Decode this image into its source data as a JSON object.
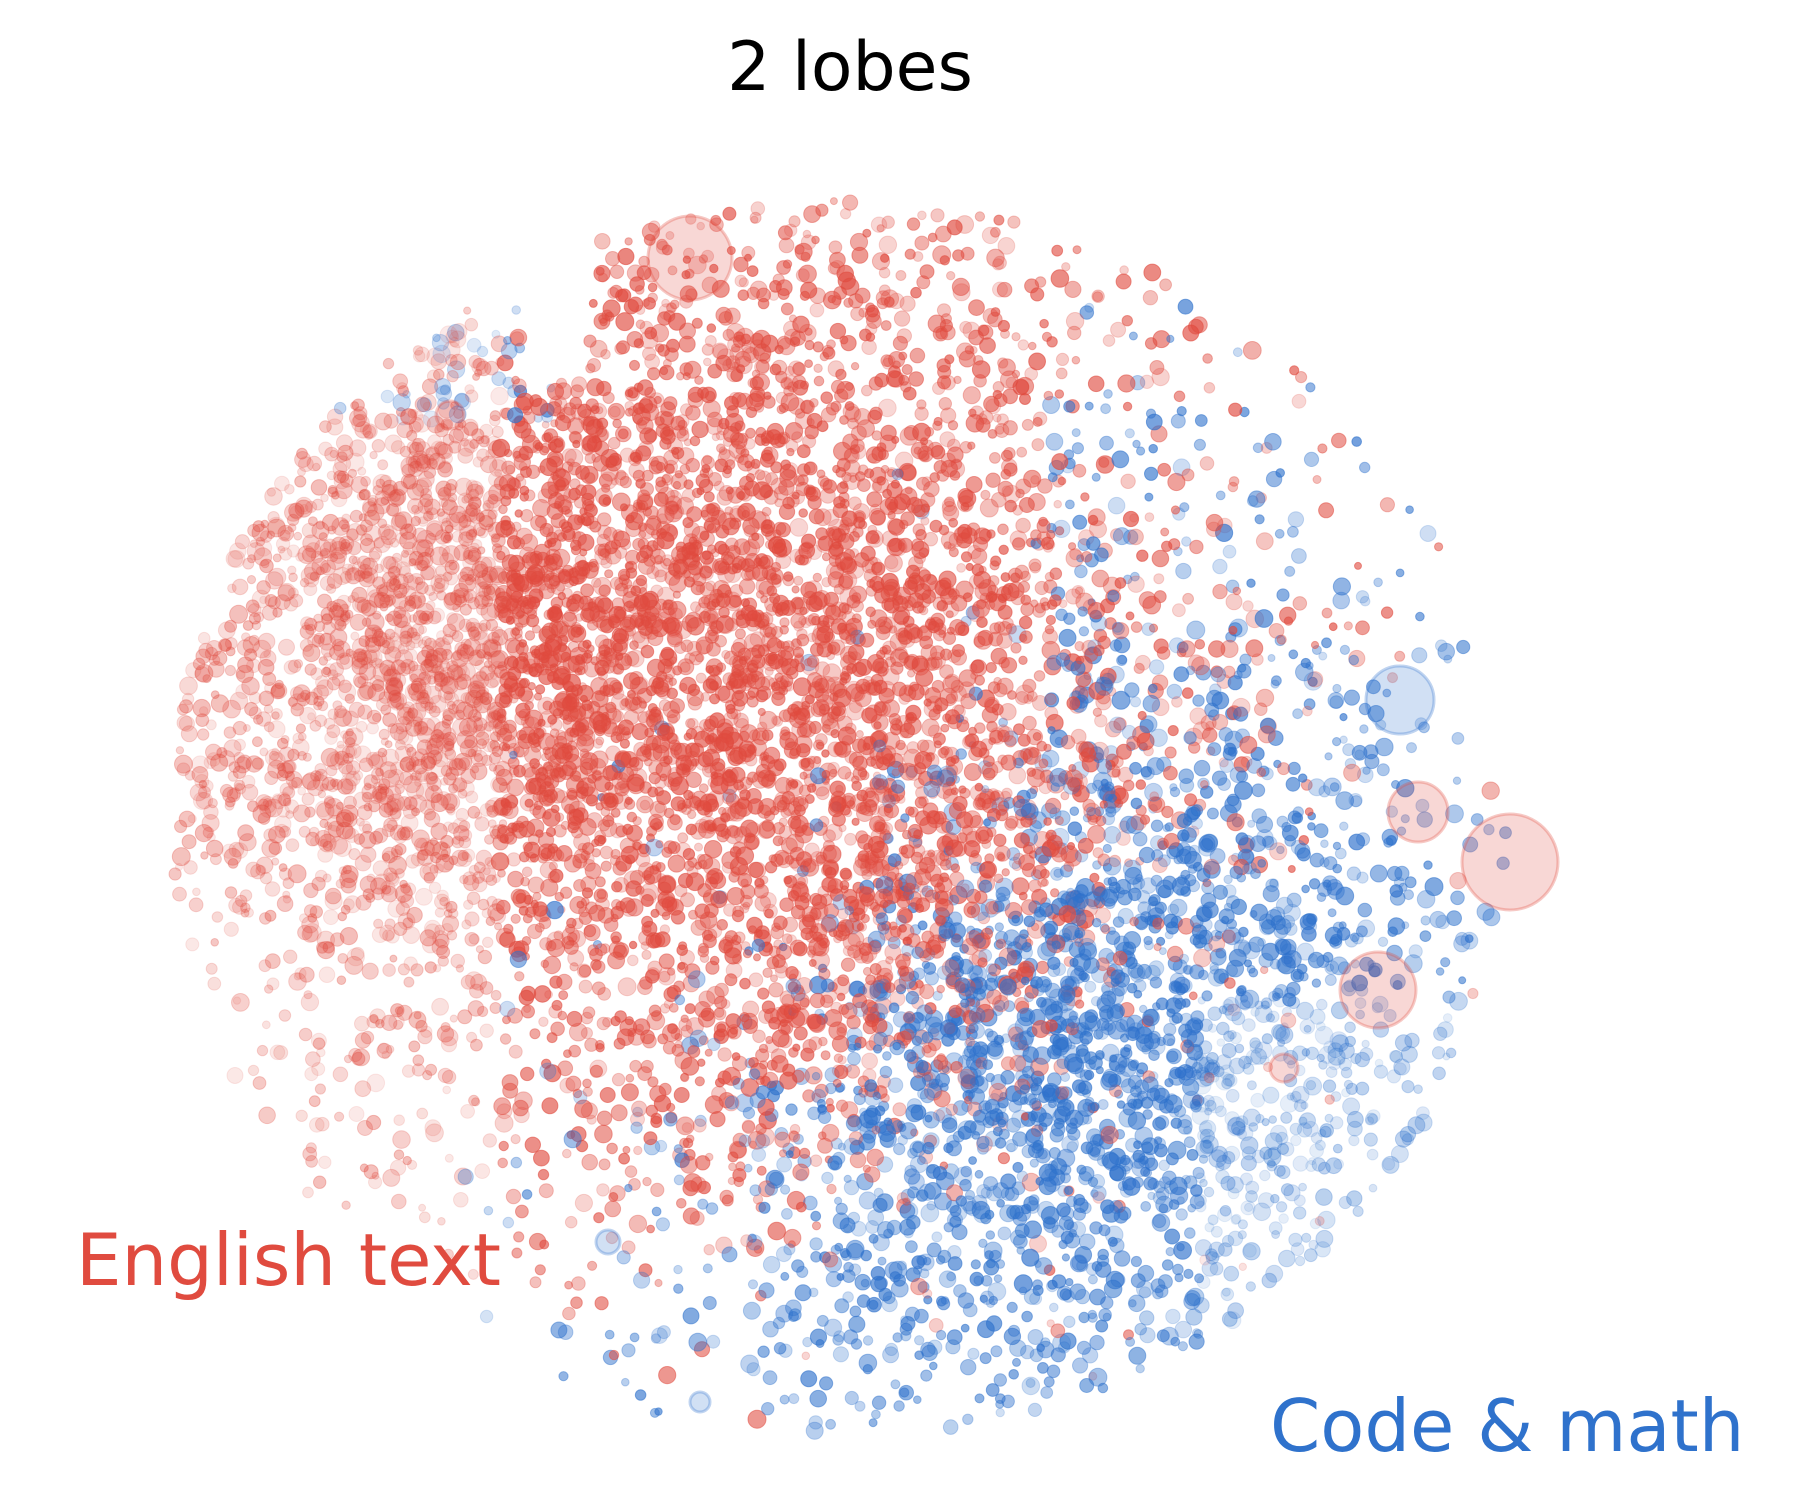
{
  "chart_data": {
    "type": "scatter",
    "title": "2 lobes",
    "xlabel": "",
    "ylabel": "",
    "axes_visible": false,
    "grid": false,
    "annotations": [
      {
        "text": "English text",
        "color": "#e04b3f",
        "placement": "bottom-left"
      },
      {
        "text": "Code & math",
        "color": "#2f72cc",
        "placement": "bottom-right"
      }
    ],
    "series": [
      {
        "color": "#e04b3f",
        "approx_points": 5200,
        "region": "upper-left lobe"
      },
      {
        "color": "#2f72cc",
        "approx_points": 3600,
        "region": "lower-right lobe"
      }
    ]
  },
  "colors": {
    "red": "#e04b3f",
    "blue": "#2f72cc",
    "background": "#ffffff"
  }
}
